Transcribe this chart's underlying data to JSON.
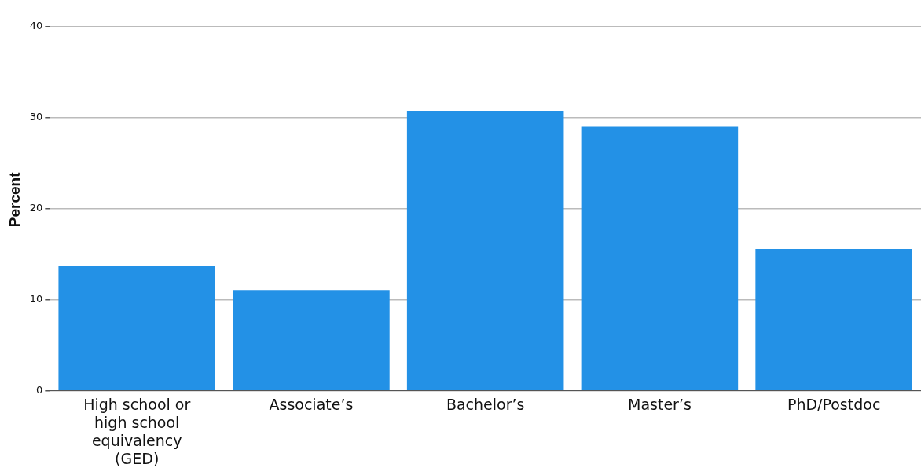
{
  "chart_data": {
    "type": "bar",
    "ylabel": "Percent",
    "categories": [
      "High school or high school equivalency (GED)",
      "Associate’s",
      "Bachelor’s",
      "Master’s",
      "PhD/Postdoc"
    ],
    "values": [
      13.7,
      11.0,
      30.7,
      29.0,
      15.6
    ],
    "color": "#2391e6",
    "ylim": [
      0,
      42
    ],
    "yticks": [
      0,
      10,
      20,
      30,
      40
    ],
    "grid": "y",
    "legend": false
  }
}
